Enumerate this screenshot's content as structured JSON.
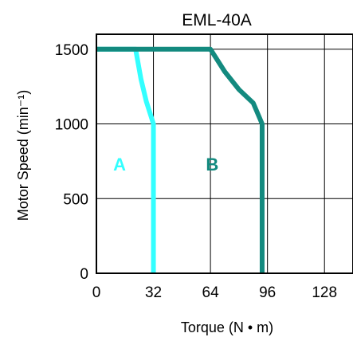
{
  "chart_data": {
    "type": "line",
    "title": "EML-40A",
    "xlabel": "Torque (N • m)",
    "ylabel": "Motor  Speed (min⁻¹)",
    "xlim": [
      0,
      144
    ],
    "ylim": [
      0,
      1600
    ],
    "x_ticks": [
      "0",
      "32",
      "64",
      "96",
      "128"
    ],
    "x_tick_values": [
      0,
      32,
      64,
      96,
      128
    ],
    "y_ticks": [
      "0",
      "500",
      "1000",
      "1500"
    ],
    "y_tick_values": [
      0,
      500,
      1000,
      1500
    ],
    "grid": true,
    "legend": "none",
    "series": [
      {
        "name": "A",
        "color": "#33ffff",
        "label_at": [
          13,
          640
        ],
        "x": [
          0,
          22,
          25,
          28,
          32,
          32
        ],
        "y": [
          1500,
          1500,
          1300,
          1150,
          1000,
          0
        ]
      },
      {
        "name": "B",
        "color": "#138a7f",
        "label_at": [
          65,
          640
        ],
        "x": [
          0,
          64,
          72,
          80,
          88,
          93,
          93
        ],
        "y": [
          1500,
          1500,
          1350,
          1230,
          1140,
          1000,
          0
        ]
      }
    ]
  }
}
